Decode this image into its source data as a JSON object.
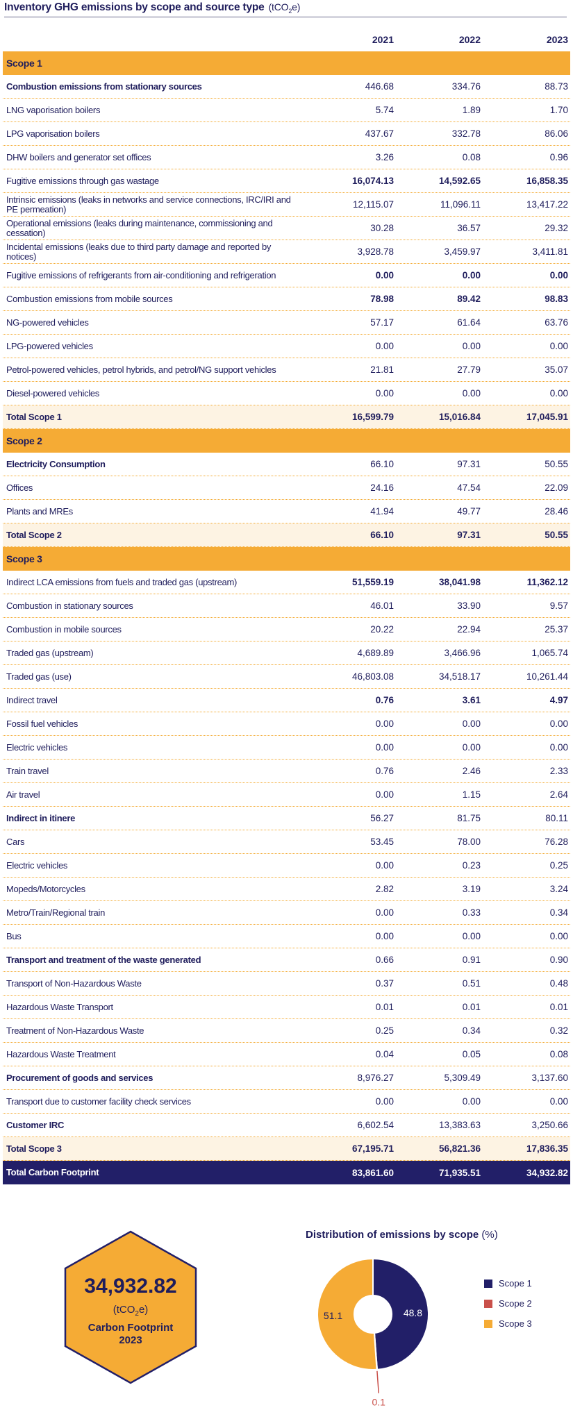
{
  "title": "Inventory GHG emissions by scope and source type",
  "title_unit_prefix": "(tCO",
  "title_unit_sub": "2",
  "title_unit_suffix": "e)",
  "years": [
    "2021",
    "2022",
    "2023"
  ],
  "rows": [
    {
      "kind": "section",
      "label": "Scope 1"
    },
    {
      "kind": "bold",
      "label": "Combustion emissions from stationary sources",
      "values": [
        "446.68",
        "334.76",
        "88.73"
      ]
    },
    {
      "kind": "normal",
      "label": "LNG vaporisation boilers",
      "values": [
        "5.74",
        "1.89",
        "1.70"
      ]
    },
    {
      "kind": "normal",
      "label": "LPG vaporisation boilers",
      "values": [
        "437.67",
        "332.78",
        "86.06"
      ]
    },
    {
      "kind": "normal",
      "label": "DHW boilers and generator set offices",
      "values": [
        "3.26",
        "0.08",
        "0.96"
      ]
    },
    {
      "kind": "boldv",
      "label": "Fugitive emissions through gas wastage",
      "values": [
        "16,074.13",
        "14,592.65",
        "16,858.35"
      ]
    },
    {
      "kind": "normal",
      "label": "Intrinsic emissions (leaks in networks and service connections, IRC/IRI and PE permeation)",
      "values": [
        "12,115.07",
        "11,096.11",
        "13,417.22"
      ]
    },
    {
      "kind": "normal",
      "label": "Operational emissions (leaks during maintenance, commissioning and cessation)",
      "values": [
        "30.28",
        "36.57",
        "29.32"
      ]
    },
    {
      "kind": "normal",
      "label": "Incidental emissions (leaks due to third party damage and reported by notices)",
      "values": [
        "3,928.78",
        "3,459.97",
        "3,411.81"
      ]
    },
    {
      "kind": "boldv",
      "label": "Fugitive emissions of refrigerants from air-conditioning and refrigeration",
      "values": [
        "0.00",
        "0.00",
        "0.00"
      ]
    },
    {
      "kind": "boldv",
      "label": "Combustion emissions from mobile sources",
      "values": [
        "78.98",
        "89.42",
        "98.83"
      ]
    },
    {
      "kind": "normal",
      "label": "NG-powered vehicles",
      "values": [
        "57.17",
        "61.64",
        "63.76"
      ]
    },
    {
      "kind": "normal",
      "label": "LPG-powered vehicles",
      "values": [
        "0.00",
        "0.00",
        "0.00"
      ]
    },
    {
      "kind": "normal",
      "label": "Petrol-powered vehicles, petrol hybrids, and petrol/NG support vehicles",
      "values": [
        "21.81",
        "27.79",
        "35.07"
      ]
    },
    {
      "kind": "normal",
      "label": "Diesel-powered vehicles",
      "values": [
        "0.00",
        "0.00",
        "0.00"
      ]
    },
    {
      "kind": "total",
      "label": "Total Scope 1",
      "values": [
        "16,599.79",
        "15,016.84",
        "17,045.91"
      ]
    },
    {
      "kind": "section",
      "label": "Scope 2"
    },
    {
      "kind": "bold",
      "label": "Electricity Consumption",
      "values": [
        "66.10",
        "97.31",
        "50.55"
      ]
    },
    {
      "kind": "normal",
      "label": "Offices",
      "values": [
        "24.16",
        "47.54",
        "22.09"
      ]
    },
    {
      "kind": "normal",
      "label": "Plants and MREs",
      "values": [
        "41.94",
        "49.77",
        "28.46"
      ]
    },
    {
      "kind": "total",
      "label": "Total Scope 2",
      "values": [
        "66.10",
        "97.31",
        "50.55"
      ]
    },
    {
      "kind": "section",
      "label": "Scope 3"
    },
    {
      "kind": "boldv",
      "label": "Indirect LCA emissions from fuels and traded gas (upstream)",
      "values": [
        "51,559.19",
        "38,041.98",
        "11,362.12"
      ]
    },
    {
      "kind": "normal",
      "label": "Combustion in stationary sources",
      "values": [
        "46.01",
        "33.90",
        "9.57"
      ]
    },
    {
      "kind": "normal",
      "label": "Combustion in mobile sources",
      "values": [
        "20.22",
        "22.94",
        "25.37"
      ]
    },
    {
      "kind": "normal",
      "label": "Traded gas (upstream)",
      "values": [
        "4,689.89",
        "3,466.96",
        "1,065.74"
      ]
    },
    {
      "kind": "normal",
      "label": "Traded gas (use)",
      "values": [
        "46,803.08",
        "34,518.17",
        "10,261.44"
      ]
    },
    {
      "kind": "boldv",
      "label": "Indirect travel",
      "values": [
        "0.76",
        "3.61",
        "4.97"
      ]
    },
    {
      "kind": "normal",
      "label": "Fossil fuel vehicles",
      "values": [
        "0.00",
        "0.00",
        "0.00"
      ]
    },
    {
      "kind": "normal",
      "label": "Electric vehicles",
      "values": [
        "0.00",
        "0.00",
        "0.00"
      ]
    },
    {
      "kind": "normal",
      "label": "Train travel",
      "values": [
        "0.76",
        "2.46",
        "2.33"
      ]
    },
    {
      "kind": "normal",
      "label": "Air travel",
      "values": [
        "0.00",
        "1.15",
        "2.64"
      ]
    },
    {
      "kind": "bold",
      "label": "Indirect in itinere",
      "values": [
        "56.27",
        "81.75",
        "80.11"
      ]
    },
    {
      "kind": "normal",
      "label": "Cars",
      "values": [
        "53.45",
        "78.00",
        "76.28"
      ]
    },
    {
      "kind": "normal",
      "label": "Electric vehicles",
      "values": [
        "0.00",
        "0.23",
        "0.25"
      ]
    },
    {
      "kind": "normal",
      "label": "Mopeds/Motorcycles",
      "values": [
        "2.82",
        "3.19",
        "3.24"
      ]
    },
    {
      "kind": "normal",
      "label": "Metro/Train/Regional train",
      "values": [
        "0.00",
        "0.33",
        "0.34"
      ]
    },
    {
      "kind": "normal",
      "label": "Bus",
      "values": [
        "0.00",
        "0.00",
        "0.00"
      ]
    },
    {
      "kind": "bold",
      "label": "Transport and treatment of the waste generated",
      "values": [
        "0.66",
        "0.91",
        "0.90"
      ]
    },
    {
      "kind": "normal",
      "label": "Transport of Non-Hazardous Waste",
      "values": [
        "0.37",
        "0.51",
        "0.48"
      ]
    },
    {
      "kind": "normal",
      "label": "Hazardous Waste Transport",
      "values": [
        "0.01",
        "0.01",
        "0.01"
      ]
    },
    {
      "kind": "normal",
      "label": "Treatment of Non-Hazardous Waste",
      "values": [
        "0.25",
        "0.34",
        "0.32"
      ]
    },
    {
      "kind": "normal",
      "label": "Hazardous Waste Treatment",
      "values": [
        "0.04",
        "0.05",
        "0.08"
      ]
    },
    {
      "kind": "bold",
      "label": "Procurement of goods and services",
      "values": [
        "8,976.27",
        "5,309.49",
        "3,137.60"
      ]
    },
    {
      "kind": "normal",
      "label": "Transport due to customer facility check services",
      "values": [
        "0.00",
        "0.00",
        "0.00"
      ]
    },
    {
      "kind": "bold",
      "label": "Customer IRC",
      "values": [
        "6,602.54",
        "13,383.63",
        "3,250.66"
      ]
    },
    {
      "kind": "total",
      "label": "Total Scope 3",
      "values": [
        "67,195.71",
        "56,821.36",
        "17,836.35"
      ]
    },
    {
      "kind": "grand",
      "label": "Total Carbon Footprint",
      "values": [
        "83,861.60",
        "71,935.51",
        "34,932.82"
      ]
    }
  ],
  "footprint": {
    "value": "34,932.82",
    "unit_prefix": "(tCO",
    "unit_sub": "2",
    "unit_suffix": "e)",
    "caption_line1": "Carbon Footprint",
    "caption_line2": "2023"
  },
  "colors": {
    "navy": "#221f68",
    "orange": "#f5ab35",
    "red": "#c9504a",
    "total_row_bg": "#fdf3e3"
  },
  "chart_data": {
    "type": "pie",
    "title": "Distribution of emissions by scope",
    "unit": "(%)",
    "labels": [
      "Scope 1",
      "Scope 2",
      "Scope 3"
    ],
    "values": [
      48.8,
      0.1,
      51.1
    ],
    "value_labels": [
      "48.8",
      "0.1",
      "51.1"
    ],
    "colors": [
      "#221f68",
      "#c9504a",
      "#f5ab35"
    ],
    "donut": true,
    "legend_position": "right"
  }
}
